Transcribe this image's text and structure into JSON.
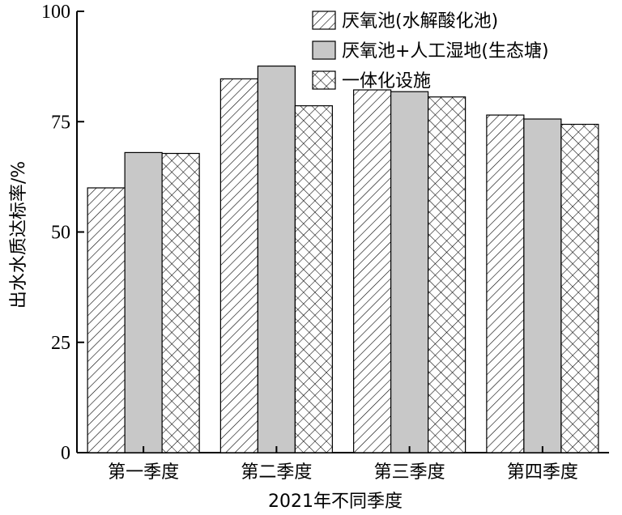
{
  "chart_data": {
    "type": "bar",
    "title": "",
    "xlabel": "2021年不同季度",
    "ylabel": "出水水质达标率/%",
    "categories": [
      "第一季度",
      "第二季度",
      "第三季度",
      "第四季度"
    ],
    "ylim": [
      0,
      100
    ],
    "yticks": [
      0,
      25,
      50,
      75,
      100
    ],
    "grid": false,
    "legend_position": "top-right",
    "series": [
      {
        "name": "厌氧池(水解酸化池)",
        "pattern": "diagonal-hatch",
        "values": [
          60,
          84.7,
          82.2,
          76.5
        ]
      },
      {
        "name": "厌氧池+人工湿地(生态塘)",
        "pattern": "solid-gray",
        "fill": "#c8c8c8",
        "values": [
          68,
          87.6,
          81.8,
          75.6
        ]
      },
      {
        "name": "一体化设施",
        "pattern": "cross-hatch",
        "values": [
          67.8,
          78.6,
          80.6,
          74.4
        ]
      }
    ]
  }
}
